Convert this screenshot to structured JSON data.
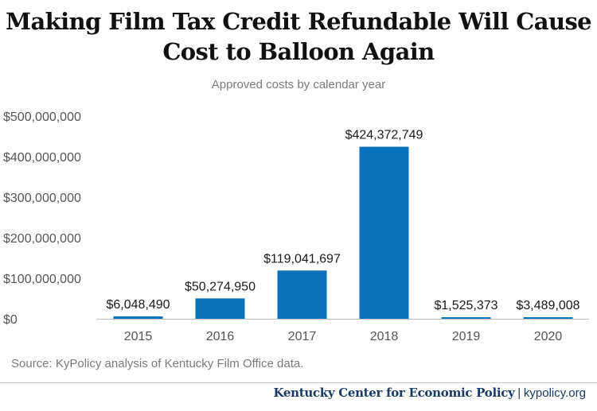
{
  "title_line1": "Making Film Tax Credit Refundable Will Cause",
  "title_line2": "Cost to Balloon Again",
  "subtitle": "Approved costs by calendar year",
  "source": "Source: KyPolicy analysis of Kentucky Film Office data.",
  "footer": {
    "org": "Kentucky Center for Economic Policy",
    "separator": "|",
    "site": "kypolicy.org"
  },
  "colors": {
    "bar": "#0a72ba",
    "axis_text": "#555555",
    "title": "#111111",
    "footer": "#1b3a63"
  },
  "chart_data": {
    "type": "bar",
    "categories": [
      "2015",
      "2016",
      "2017",
      "2018",
      "2019",
      "2020"
    ],
    "values": [
      6048490,
      50274950,
      119041697,
      424372749,
      1525373,
      3489008
    ],
    "data_labels": [
      "$6,048,490",
      "$50,274,950",
      "$119,041,697",
      "$424,372,749",
      "$1,525,373",
      "$3,489,008"
    ],
    "yticks": [
      0,
      100000000,
      200000000,
      300000000,
      400000000,
      500000000
    ],
    "ytick_labels": [
      "$0",
      "$100,000,000",
      "$200,000,000",
      "$300,000,000",
      "$400,000,000",
      "$500,000,000"
    ],
    "ylim": [
      0,
      500000000
    ],
    "grid": false,
    "legend": "none",
    "xlabel": "",
    "ylabel": ""
  }
}
